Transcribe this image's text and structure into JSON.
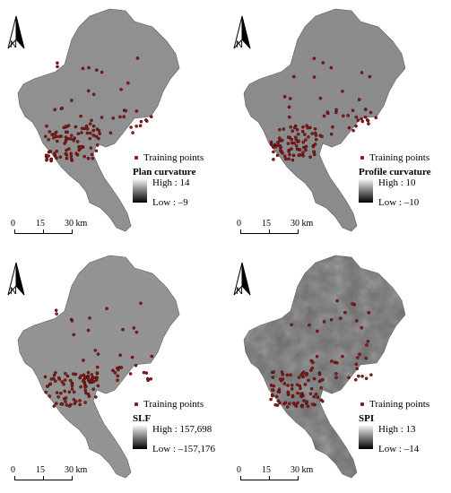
{
  "panels": [
    {
      "north_label": "N",
      "training_label": "Training points",
      "layer_title": "Plan curvature",
      "high_label": "High : 14",
      "low_label": "Low : –9",
      "scale": [
        "0",
        "15",
        "30 km"
      ],
      "fill": "#8a8a8a"
    },
    {
      "north_label": "N",
      "training_label": "Training points",
      "layer_title": "Profile curvature",
      "high_label": "High : 10",
      "low_label": "Low : –10",
      "scale": [
        "0",
        "15",
        "30 km"
      ],
      "fill": "#858585"
    },
    {
      "north_label": "N",
      "training_label": "Training points",
      "layer_title": "SLF",
      "high_label": "High : 157,698",
      "low_label": "Low : –157,176",
      "scale": [
        "0",
        "15",
        "30 km"
      ],
      "fill": "#8e8e8e"
    },
    {
      "north_label": "N",
      "training_label": "Training points",
      "layer_title": "SPI",
      "high_label": "High : 13",
      "low_label": "Low : –14",
      "scale": [
        "0",
        "15",
        "30 km"
      ],
      "fill": "#6b6b6b"
    }
  ],
  "colors": {
    "training_point": "#8b1a1a",
    "map_outline": "#555555"
  }
}
